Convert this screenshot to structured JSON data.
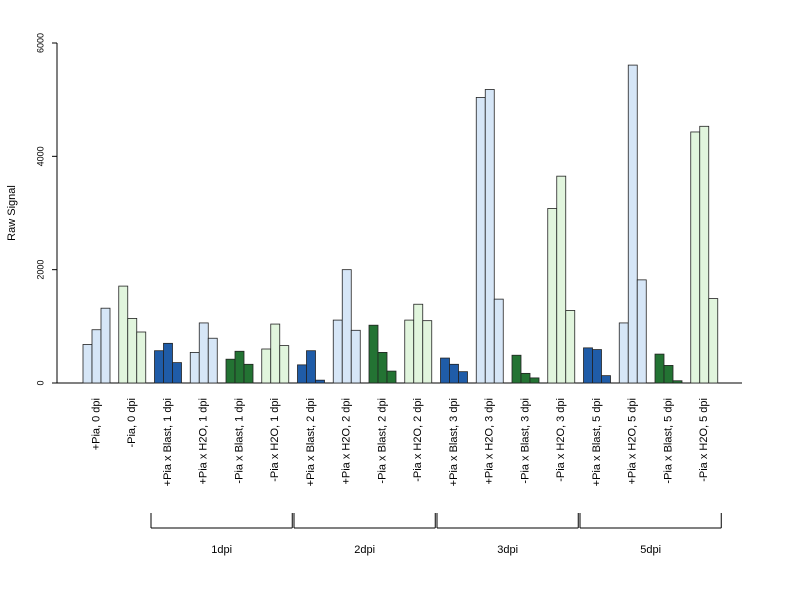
{
  "chart_data": {
    "type": "bar",
    "ylabel": "Raw Signal",
    "ylim": [
      0,
      6000
    ],
    "yticks": [
      0,
      2000,
      4000,
      6000
    ],
    "grid": false,
    "categories": [
      "+Pia, 0 dpi",
      "-Pia, 0 dpi",
      "+Pia x Blast, 1 dpi",
      "+Pia x H2O, 1 dpi",
      "-Pia x Blast, 1 dpi",
      "-Pia x H2O, 1 dpi",
      "+Pia x Blast, 2 dpi",
      "+Pia x H2O, 2 dpi",
      "-Pia x Blast, 2 dpi",
      "-Pia x H2O, 2 dpi",
      "+Pia x Blast, 3 dpi",
      "+Pia x H2O, 3 dpi",
      "-Pia x Blast, 3 dpi",
      "-Pia x H2O, 3 dpi",
      "+Pia x Blast, 5 dpi",
      "+Pia x H2O, 5 dpi",
      "-Pia x Blast, 5 dpi",
      "-Pia x H2O, 5 dpi"
    ],
    "bar_colors": [
      "#d6e6f7",
      "#e1f5dd",
      "#1f5ca8",
      "#d6e6f7",
      "#237333",
      "#e1f5dd",
      "#1f5ca8",
      "#d6e6f7",
      "#237333",
      "#e1f5dd",
      "#1f5ca8",
      "#d6e6f7",
      "#237333",
      "#e1f5dd",
      "#1f5ca8",
      "#d6e6f7",
      "#237333",
      "#e1f5dd"
    ],
    "values": [
      [
        680,
        940,
        1320
      ],
      [
        1710,
        1140,
        900
      ],
      [
        570,
        700,
        360
      ],
      [
        540,
        1060,
        790
      ],
      [
        420,
        560,
        330
      ],
      [
        600,
        1040,
        660
      ],
      [
        320,
        570,
        50
      ],
      [
        1110,
        2000,
        930
      ],
      [
        1020,
        540,
        210
      ],
      [
        1110,
        1390,
        1100
      ],
      [
        440,
        330,
        200
      ],
      [
        5040,
        5180,
        1480
      ],
      [
        490,
        170,
        90
      ],
      [
        3080,
        3650,
        1280
      ],
      [
        620,
        590,
        130
      ],
      [
        1060,
        5610,
        1820
      ],
      [
        510,
        310,
        40
      ],
      [
        4430,
        4530,
        1490
      ]
    ],
    "groups": [
      {
        "label": "1dpi",
        "from": 2,
        "to": 5
      },
      {
        "label": "2dpi",
        "from": 6,
        "to": 9
      },
      {
        "label": "3dpi",
        "from": 10,
        "to": 13
      },
      {
        "label": "5dpi",
        "from": 14,
        "to": 17
      }
    ]
  }
}
